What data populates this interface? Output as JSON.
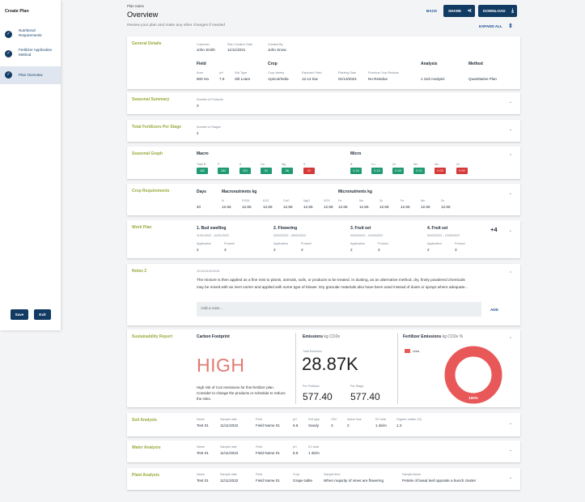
{
  "sidebar": {
    "title": "Create Plan",
    "steps": [
      {
        "label": "Nutritional Requirements"
      },
      {
        "label": "Fertilizer Application Method"
      },
      {
        "label": "Plan Overview"
      }
    ],
    "save_label": "Save",
    "exit_label": "Exit"
  },
  "header": {
    "plan_name_label": "Plan name",
    "title": "Overview",
    "subtitle": "Review your plan and make any other changes if needed",
    "back": "BACK",
    "share": "SHARE",
    "download": "DOWNLOAD",
    "expand_all": "EXPAND ALL"
  },
  "general": {
    "title": "General Details",
    "customer_label": "Customer",
    "customer": "John Smith",
    "creation_date_label": "Plan Creation Date",
    "creation_date": "11/11/2021",
    "created_by_label": "Created By",
    "created_by": "John Snow",
    "field_head": "Field",
    "crop_head": "Crop",
    "analysis_head": "Analysis",
    "method_head": "Method",
    "area_label": "Area",
    "area": "500 Ha",
    "ph_label": "pH",
    "ph": "7.5",
    "soil_type_label": "Soil Type",
    "soil_type": "Silt Loam",
    "crop_variety_label": "Crop Variety",
    "crop_variety": "Apricot/India",
    "expected_yield_label": "Expected Yield",
    "expected_yield": "12.14 t/ac",
    "planting_date_label": "Planting Date",
    "planting_date": "01/13/2021",
    "prev_residue_label": "Previous Crop Residue",
    "prev_residue": "No Residue",
    "analysis": "1 Soil Analysis",
    "method": "Quantitative Plan"
  },
  "seasonal_summary": {
    "title": "Seasonal Summary",
    "products_label": "Number of Products",
    "products": "3"
  },
  "total_fertilizers": {
    "title": "Total Fertilizers Per Stage",
    "stages_label": "Number of Stages",
    "stages": "4"
  },
  "seasonal_graph": {
    "title": "Seasonal Graph",
    "macro_head": "Macro",
    "micro_head": "Micro",
    "macro": [
      {
        "label": "Total N",
        "value": "162",
        "status": "good"
      },
      {
        "label": "P",
        "value": "162",
        "status": "good"
      },
      {
        "label": "K",
        "value": "101",
        "status": "good"
      },
      {
        "label": "Ca",
        "value": "51",
        "status": "good"
      },
      {
        "label": "Mg",
        "value": "56",
        "status": "good"
      },
      {
        "label": "S",
        "value": "21",
        "status": "bad"
      }
    ],
    "micro": [
      {
        "label": "B",
        "value": "0.15",
        "status": "good"
      },
      {
        "label": "Cu",
        "value": "0.15",
        "status": "good"
      },
      {
        "label": "Zn",
        "value": "0.28",
        "status": "good"
      },
      {
        "label": "Mn",
        "value": "0.01",
        "status": "good"
      },
      {
        "label": "Mo",
        "value": "0.00",
        "status": "bad"
      },
      {
        "label": "Zn",
        "value": "0.00",
        "status": "bad"
      }
    ]
  },
  "crop_requirements": {
    "title": "Crop Requirements",
    "days_head": "Days",
    "days": "40",
    "macro_head": "Macronutrients kg",
    "micro_head": "Micronutrients kg",
    "macro": [
      {
        "label": "N",
        "value": "12.66"
      },
      {
        "label": "P2O5",
        "value": "12.66"
      },
      {
        "label": "K2O",
        "value": "12.66"
      },
      {
        "label": "CaO",
        "value": "12.66"
      },
      {
        "label": "MgO",
        "value": "12.66"
      },
      {
        "label": "SO3",
        "value": "12.66"
      }
    ],
    "micro": [
      {
        "label": "Fe",
        "value": "12.66"
      },
      {
        "label": "Mn",
        "value": "12.66"
      },
      {
        "label": "Zn",
        "value": "12.66"
      },
      {
        "label": "Fe",
        "value": "12.66"
      },
      {
        "label": "Mn",
        "value": "12.66"
      },
      {
        "label": "Zn",
        "value": "12.66"
      }
    ]
  },
  "work_plan": {
    "title": "Work Plan",
    "more": "+4",
    "application_label": "Application",
    "product_label": "Product",
    "stages": [
      {
        "name": "1. Bud swelling",
        "dates": "11/01/2022 - 10/01/2022",
        "application": "2",
        "product": "3"
      },
      {
        "name": "2. Flowering",
        "dates": "20/02/2022 - 28/02/2022",
        "application": "2",
        "product": "3"
      },
      {
        "name": "3. Fruit set",
        "dates": "03/03/2022 - 10/03/2022",
        "application": "2",
        "product": "3"
      },
      {
        "name": "4. Fruit set",
        "dates": "03/03/2022 - 10/03/2022",
        "application": "2",
        "product": "3"
      }
    ]
  },
  "notes": {
    "title": "Notes 2",
    "date": "12/12/12/12/2021",
    "line1": "The mixture is then applied as a fine mist to plants, animals, soils, or products to be treated. In dusting, as an alternative method, dry, finely powdered chemicals",
    "line2": "may be mixed with an inert carrier and applied with some type of blower. Dry granular materials also have been used instead of dusts or sprays where adequate...",
    "placeholder": "Add a note...",
    "add": "ADD"
  },
  "sustainability": {
    "title": "Sustainability Report",
    "carbon_head": "Carbon Footprint",
    "risk": "HIGH",
    "risk_desc": "High risk of Co2 emissions for this fertilizer plan. Consider to change the products or schedule to reduce the risks.",
    "emissions_head": "Emissions",
    "emissions_unit": "kg CO2e",
    "total_label": "Total Emission",
    "total": "28.87K",
    "per_fert_label": "Per Fertilizer",
    "per_fert": "577.40",
    "per_stage_label": "Per Stage",
    "per_stage": "577.40",
    "fert_emissions_head": "Fertilizer Emissions",
    "fert_emissions_unit": "kg CO2e %",
    "legend": "Urea",
    "donut_label": "100%",
    "donut_color": "#e85858",
    "urea_fraction": 1.0
  },
  "soil_analysis": {
    "title": "Soil Analysis",
    "cols": [
      {
        "label": "Name",
        "value": "Test 01"
      },
      {
        "label": "Sample date",
        "value": "11/11/2022"
      },
      {
        "label": "Field",
        "value": "Field Name 01"
      },
      {
        "label": "pH",
        "value": "6.8"
      },
      {
        "label": "Soil type",
        "value": "Sandy"
      },
      {
        "label": "CEC",
        "value": "3"
      },
      {
        "label": "Active lime",
        "value": "2"
      },
      {
        "label": "EC total",
        "value": "1 ds/m"
      },
      {
        "label": "Organic matter (%)",
        "value": "1.3"
      }
    ]
  },
  "water_analysis": {
    "title": "Water Analysis",
    "cols": [
      {
        "label": "Name",
        "value": "Test 01"
      },
      {
        "label": "Sample date",
        "value": "11/11/2022"
      },
      {
        "label": "Field",
        "value": "Field Name 01"
      },
      {
        "label": "pH",
        "value": "6.8"
      },
      {
        "label": "EC total",
        "value": "1 ds/m"
      }
    ]
  },
  "plant_analysis": {
    "title": "Plant Analysis",
    "cols": [
      {
        "label": "Name",
        "value": "Test 01"
      },
      {
        "label": "Sample date",
        "value": "11/11/2022"
      },
      {
        "label": "Field",
        "value": "Field Name 01"
      },
      {
        "label": "Crop",
        "value": "Grape table"
      },
      {
        "label": "Sample time",
        "value": "When majority of vines are flowering"
      },
      {
        "label": "Sample tissue",
        "value": "Petiole of basal leaf opposite a bunch cluster"
      }
    ]
  }
}
